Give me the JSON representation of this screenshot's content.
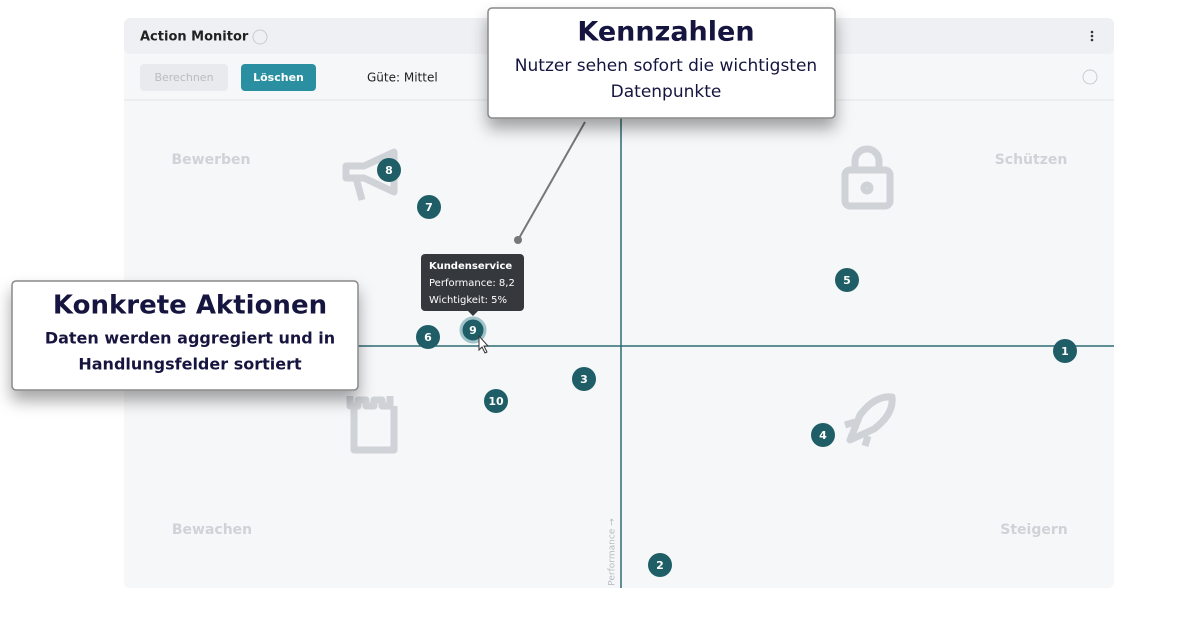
{
  "header": {
    "title": "Action Monitor"
  },
  "toolbar": {
    "buttons": [
      "Berechnen",
      "Löschen"
    ],
    "quality": "Güte: Mittel"
  },
  "quadrants": [
    "Bewerben",
    "Schützen",
    "Bewachen",
    "Steigern"
  ],
  "axis_label": "Performance →",
  "points": [
    "1",
    "2",
    "3",
    "4",
    "5",
    "6",
    "7",
    "8",
    "9",
    "10"
  ],
  "tooltip": {
    "title": "Kundenservice",
    "lines": [
      "Performance: 8,2",
      "Wichtigkeit: 5%"
    ]
  },
  "callouts": [
    {
      "title": "Kennzahlen",
      "lines": [
        "Nutzer sehen sofort die wichtigsten",
        "Datenpunkte"
      ]
    },
    {
      "title": "Konkrete Aktionen",
      "lines": [
        "Daten werden aggregiert und in",
        "Handlungsfelder sortiert"
      ]
    }
  ]
}
